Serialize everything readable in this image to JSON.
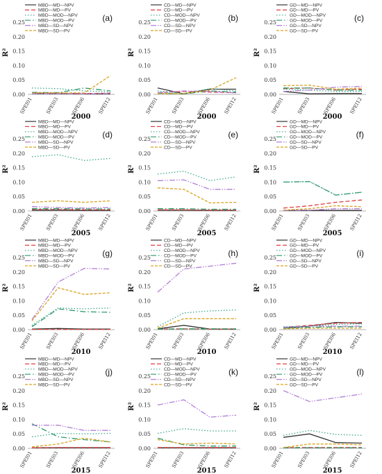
{
  "styles": {
    "MD_NPV": {
      "color": "#333333",
      "dash": ""
    },
    "MD_PV": {
      "color": "#e04040",
      "dash": "6,3"
    },
    "MOD_NPV": {
      "color": "#3aa68c",
      "dash": "1.5,2.5"
    },
    "MOD_PV": {
      "color": "#2c9a6a",
      "dash": "8,3,1.5,3"
    },
    "SD_NPV": {
      "color": "#b27fd6",
      "dash": "8,2,1.5,2,1.5,2"
    },
    "SD_PV": {
      "color": "#d9a21f",
      "dash": "4,2"
    }
  },
  "chart_data": [
    {
      "type": "line",
      "panel": "(a)",
      "year": "2000",
      "ylabel": "R²",
      "categories": [
        "SPEI01",
        "SPEI03",
        "SPEI06",
        "SPEI12"
      ],
      "ylim": [
        0,
        0.25
      ],
      "yticks": [
        "0.00",
        "0.05",
        "0.10",
        "0.15",
        "0.20",
        "0.25"
      ],
      "series": [
        {
          "name": "MBD—MD—NPV",
          "style": "MD_NPV",
          "values": [
            0.003,
            0.003,
            0.002,
            0.002
          ]
        },
        {
          "name": "MBD—MD—PV",
          "style": "MD_PV",
          "values": [
            0.005,
            0.004,
            0.003,
            0.004
          ]
        },
        {
          "name": "MBD—MOD—NPV",
          "style": "MOD_NPV",
          "values": [
            0.022,
            0.02,
            0.012,
            0.008
          ]
        },
        {
          "name": "MBD—MOD—PV",
          "style": "MOD_PV",
          "values": [
            0.007,
            0.006,
            0.022,
            0.012
          ]
        },
        {
          "name": "MBD—SD—NPV",
          "style": "SD_NPV",
          "values": [
            0.002,
            0.002,
            0.002,
            0.003
          ]
        },
        {
          "name": "MBD—SD—PV",
          "style": "SD_PV",
          "values": [
            0.005,
            0.005,
            0.005,
            0.065
          ]
        }
      ]
    },
    {
      "type": "line",
      "panel": "(b)",
      "year": "2000",
      "ylabel": "R²",
      "categories": [
        "SPEI01",
        "SPEI03",
        "SPEI06",
        "SPEI12"
      ],
      "ylim": [
        0,
        0.25
      ],
      "yticks": [
        "0.00",
        "0.05",
        "0.10",
        "0.15",
        "0.20",
        "0.25"
      ],
      "series": [
        {
          "name": "CD—MD—NPV",
          "style": "MD_NPV",
          "values": [
            0.022,
            0.002,
            0.018,
            0.018
          ]
        },
        {
          "name": "CD—MD—PV",
          "style": "MD_PV",
          "values": [
            0.006,
            0.01,
            0.008,
            0.006
          ]
        },
        {
          "name": "CD—MOD—NPV",
          "style": "MOD_NPV",
          "values": [
            0.012,
            0.003,
            0.02,
            0.012
          ]
        },
        {
          "name": "CD—MOD—PV",
          "style": "MOD_PV",
          "values": [
            0.004,
            0.002,
            0.012,
            0.008
          ]
        },
        {
          "name": "CD—SD—NPV",
          "style": "SD_NPV",
          "values": [
            0.006,
            0.012,
            0.01,
            0.005
          ]
        },
        {
          "name": "CD—SD—PV",
          "style": "SD_PV",
          "values": [
            0.003,
            0.003,
            0.015,
            0.058
          ]
        }
      ]
    },
    {
      "type": "line",
      "panel": "(c)",
      "year": "2000",
      "ylabel": "R²",
      "categories": [
        "SPEI01",
        "SPEI03",
        "SPEI06",
        "SPEI12"
      ],
      "ylim": [
        0,
        0.25
      ],
      "yticks": [
        "0.00",
        "0.05",
        "0.10",
        "0.15",
        "0.20",
        "0.25"
      ],
      "series": [
        {
          "name": "GD—MD—NPV",
          "style": "MD_NPV",
          "values": [
            0.01,
            0.002,
            0.003,
            0.003
          ]
        },
        {
          "name": "GD—MD—PV",
          "style": "MD_PV",
          "values": [
            0.02,
            0.022,
            0.015,
            0.018
          ]
        },
        {
          "name": "GD—MOD—NPV",
          "style": "MOD_NPV",
          "values": [
            0.018,
            0.015,
            0.01,
            0.01
          ]
        },
        {
          "name": "GD—MOD—PV",
          "style": "MOD_PV",
          "values": [
            0.022,
            0.022,
            0.015,
            0.015
          ]
        },
        {
          "name": "GD—SD—NPV",
          "style": "SD_NPV",
          "values": [
            0.01,
            0.015,
            0.025,
            0.028
          ]
        },
        {
          "name": "GD—SD—PV",
          "style": "SD_PV",
          "values": [
            0.03,
            0.032,
            0.018,
            0.022
          ]
        }
      ]
    },
    {
      "type": "line",
      "panel": "(d)",
      "year": "2005",
      "ylabel": "R²",
      "categories": [
        "SPEI01",
        "SPEI03",
        "SPEI06",
        "SPEI12"
      ],
      "ylim": [
        0,
        0.25
      ],
      "yticks": [
        "0.00",
        "0.05",
        "0.10",
        "0.15",
        "0.20",
        "0.25"
      ],
      "series": [
        {
          "name": "MBD—MD—NPV",
          "style": "MD_NPV",
          "values": [
            0.003,
            0.003,
            0.002,
            0.002
          ]
        },
        {
          "name": "MBD—MD—PV",
          "style": "MD_PV",
          "values": [
            0.005,
            0.005,
            0.004,
            0.004
          ]
        },
        {
          "name": "MBD—MOD—NPV",
          "style": "MOD_NPV",
          "values": [
            0.188,
            0.195,
            0.175,
            0.182
          ]
        },
        {
          "name": "MBD—MOD—PV",
          "style": "MOD_PV",
          "values": [
            0.008,
            0.008,
            0.007,
            0.007
          ]
        },
        {
          "name": "MBD—SD—NPV",
          "style": "SD_NPV",
          "values": [
            0.015,
            0.012,
            0.01,
            0.012
          ]
        },
        {
          "name": "MBD—SD—PV",
          "style": "SD_PV",
          "values": [
            0.03,
            0.035,
            0.03,
            0.035
          ]
        }
      ]
    },
    {
      "type": "line",
      "panel": "(e)",
      "year": "2005",
      "ylabel": "R²",
      "categories": [
        "SPEI01",
        "SPEI03",
        "SPEI06",
        "SPEI12"
      ],
      "ylim": [
        0,
        0.25
      ],
      "yticks": [
        "0.00",
        "0.05",
        "0.10",
        "0.15",
        "0.20",
        "0.25"
      ],
      "series": [
        {
          "name": "CD—MD—NPV",
          "style": "MD_NPV",
          "values": [
            0.003,
            0.003,
            0.002,
            0.002
          ]
        },
        {
          "name": "CD—MD—PV",
          "style": "MD_PV",
          "values": [
            0.004,
            0.004,
            0.003,
            0.003
          ]
        },
        {
          "name": "CD—MOD—NPV",
          "style": "MOD_NPV",
          "values": [
            0.128,
            0.138,
            0.105,
            0.118
          ]
        },
        {
          "name": "CD—MOD—PV",
          "style": "MOD_PV",
          "values": [
            0.008,
            0.008,
            0.006,
            0.006
          ]
        },
        {
          "name": "CD—SD—NPV",
          "style": "SD_NPV",
          "values": [
            0.105,
            0.108,
            0.075,
            0.075
          ]
        },
        {
          "name": "CD—SD—PV",
          "style": "SD_PV",
          "values": [
            0.08,
            0.075,
            0.028,
            0.03
          ]
        }
      ]
    },
    {
      "type": "line",
      "panel": "(f)",
      "year": "2005",
      "ylabel": "R²",
      "categories": [
        "SPEI01",
        "SPEI03",
        "SPEI06",
        "SPEI12"
      ],
      "ylim": [
        0,
        0.25
      ],
      "yticks": [
        "0.00",
        "0.05",
        "0.10",
        "0.15",
        "0.20",
        "0.25"
      ],
      "series": [
        {
          "name": "GD—MD—NPV",
          "style": "MD_NPV",
          "values": [
            0.002,
            0.002,
            0.002,
            0.002
          ]
        },
        {
          "name": "GD—MD—PV",
          "style": "MD_PV",
          "values": [
            0.01,
            0.018,
            0.03,
            0.038
          ]
        },
        {
          "name": "GD—MOD—NPV",
          "style": "MOD_NPV",
          "values": [
            0.1,
            0.102,
            0.055,
            0.065
          ]
        },
        {
          "name": "GD—MOD—PV",
          "style": "MOD_PV",
          "values": [
            0.1,
            0.102,
            0.055,
            0.065
          ]
        },
        {
          "name": "GD—SD—NPV",
          "style": "SD_NPV",
          "values": [
            0.002,
            0.003,
            0.008,
            0.008
          ]
        },
        {
          "name": "GD—SD—PV",
          "style": "SD_PV",
          "values": [
            0.003,
            0.008,
            0.018,
            0.015
          ]
        }
      ]
    },
    {
      "type": "line",
      "panel": "(g)",
      "year": "2010",
      "ylabel": "R²",
      "categories": [
        "SPEI01",
        "SPEI03",
        "SPEI06",
        "SPEI12"
      ],
      "ylim": [
        0,
        0.25
      ],
      "yticks": [
        "0.00",
        "0.05",
        "0.10",
        "0.15",
        "0.20",
        "0.25"
      ],
      "series": [
        {
          "name": "MBD—MD—NPV",
          "style": "MD_NPV",
          "values": [
            0.002,
            0.004,
            0.002,
            0.002
          ]
        },
        {
          "name": "MBD—MD—PV",
          "style": "MD_PV",
          "values": [
            0.001,
            0.001,
            0.001,
            0.001
          ]
        },
        {
          "name": "MBD—MOD—NPV",
          "style": "MOD_NPV",
          "values": [
            0.015,
            0.075,
            0.072,
            0.075
          ]
        },
        {
          "name": "MBD—MOD—PV",
          "style": "MOD_PV",
          "values": [
            0.01,
            0.072,
            0.062,
            0.06
          ]
        },
        {
          "name": "MBD—SD—NPV",
          "style": "SD_NPV",
          "values": [
            0.035,
            0.165,
            0.212,
            0.21
          ]
        },
        {
          "name": "MBD—SD—PV",
          "style": "SD_PV",
          "values": [
            0.03,
            0.145,
            0.122,
            0.128
          ]
        }
      ]
    },
    {
      "type": "line",
      "panel": "(h)",
      "year": "2010",
      "ylabel": "R²",
      "categories": [
        "SPEI01",
        "SPEI03",
        "SPEI06",
        "SPEI12"
      ],
      "ylim": [
        0,
        0.25
      ],
      "yticks": [
        "0.00",
        "0.05",
        "0.10",
        "0.15",
        "0.20",
        "0.25"
      ],
      "series": [
        {
          "name": "CD—MD—NPV",
          "style": "MD_NPV",
          "values": [
            0.003,
            0.015,
            0.002,
            0.002
          ]
        },
        {
          "name": "CD—MD—PV",
          "style": "MD_PV",
          "values": [
            0.002,
            0.003,
            0.002,
            0.002
          ]
        },
        {
          "name": "CD—MOD—NPV",
          "style": "MOD_NPV",
          "values": [
            0.01,
            0.058,
            0.065,
            0.068
          ]
        },
        {
          "name": "CD—MOD—PV",
          "style": "MOD_PV",
          "values": [
            0.002,
            0.003,
            0.003,
            0.003
          ]
        },
        {
          "name": "CD—SD—NPV",
          "style": "SD_NPV",
          "values": [
            0.13,
            0.21,
            0.22,
            0.23
          ]
        },
        {
          "name": "CD—SD—PV",
          "style": "SD_PV",
          "values": [
            0.005,
            0.038,
            0.038,
            0.038
          ]
        }
      ]
    },
    {
      "type": "line",
      "panel": "(i)",
      "year": "2010",
      "ylabel": "R²",
      "categories": [
        "SPEI01",
        "SPEI03",
        "SPEI06",
        "SPEI12"
      ],
      "ylim": [
        0,
        0.25
      ],
      "yticks": [
        "0.00",
        "0.05",
        "0.10",
        "0.15",
        "0.20",
        "0.25"
      ],
      "series": [
        {
          "name": "GD—MD—NPV",
          "style": "MD_NPV",
          "values": [
            0.005,
            0.012,
            0.025,
            0.022
          ]
        },
        {
          "name": "GD—MD—PV",
          "style": "MD_PV",
          "values": [
            0.008,
            0.015,
            0.022,
            0.025
          ]
        },
        {
          "name": "GD—MOD—NPV",
          "style": "MOD_NPV",
          "values": [
            0.01,
            0.012,
            0.018,
            0.02
          ]
        },
        {
          "name": "GD—MOD—PV",
          "style": "MOD_PV",
          "values": [
            0.005,
            0.008,
            0.01,
            0.01
          ]
        },
        {
          "name": "GD—SD—NPV",
          "style": "SD_NPV",
          "values": [
            0.008,
            0.012,
            0.012,
            0.012
          ]
        },
        {
          "name": "GD—SD—PV",
          "style": "SD_PV",
          "values": [
            0.003,
            0.005,
            0.005,
            0.005
          ]
        }
      ]
    },
    {
      "type": "line",
      "panel": "(j)",
      "year": "2015",
      "ylabel": "R²",
      "categories": [
        "SPEI01",
        "SPEI03",
        "SPEI06",
        "SPEI12"
      ],
      "ylim": [
        0,
        0.25
      ],
      "yticks": [
        "0.00",
        "0.05",
        "0.10",
        "0.15",
        "0.20",
        "0.25"
      ],
      "series": [
        {
          "name": "MBD—MD—NPV",
          "style": "MD_NPV",
          "values": [
            0.002,
            0.002,
            0.002,
            0.002
          ]
        },
        {
          "name": "MBD—MD—PV",
          "style": "MD_PV",
          "values": [
            0.002,
            0.003,
            0.003,
            0.003
          ]
        },
        {
          "name": "MBD—MOD—NPV",
          "style": "MOD_NPV",
          "values": [
            0.04,
            0.052,
            0.05,
            0.052
          ]
        },
        {
          "name": "MBD—MOD—PV",
          "style": "MOD_PV",
          "values": [
            0.085,
            0.04,
            0.03,
            0.022
          ]
        },
        {
          "name": "MBD—SD—NPV",
          "style": "SD_NPV",
          "values": [
            0.08,
            0.08,
            0.062,
            0.062
          ]
        },
        {
          "name": "MBD—SD—PV",
          "style": "SD_PV",
          "values": [
            0.005,
            0.015,
            0.035,
            0.022
          ]
        }
      ]
    },
    {
      "type": "line",
      "panel": "(k)",
      "year": "2015",
      "ylabel": "R²",
      "categories": [
        "SPEI01",
        "SPEI03",
        "SPEI06",
        "SPEI12"
      ],
      "ylim": [
        0,
        0.25
      ],
      "yticks": [
        "0.00",
        "0.05",
        "0.10",
        "0.15",
        "0.20",
        "0.25"
      ],
      "series": [
        {
          "name": "CD—MD—NPV",
          "style": "MD_NPV",
          "values": [
            0.002,
            0.002,
            0.002,
            0.002
          ]
        },
        {
          "name": "CD—MD—PV",
          "style": "MD_PV",
          "values": [
            0.003,
            0.003,
            0.003,
            0.003
          ]
        },
        {
          "name": "CD—MOD—NPV",
          "style": "MOD_NPV",
          "values": [
            0.052,
            0.068,
            0.06,
            0.06
          ]
        },
        {
          "name": "CD—MOD—PV",
          "style": "MOD_PV",
          "values": [
            0.035,
            0.012,
            0.008,
            0.008
          ]
        },
        {
          "name": "CD—SD—NPV",
          "style": "SD_NPV",
          "values": [
            0.15,
            0.168,
            0.108,
            0.115
          ]
        },
        {
          "name": "CD—SD—PV",
          "style": "SD_PV",
          "values": [
            0.03,
            0.015,
            0.018,
            0.015
          ]
        }
      ]
    },
    {
      "type": "line",
      "panel": "(l)",
      "year": "2015",
      "ylabel": "R²",
      "categories": [
        "SPEI01",
        "SPEI03",
        "SPEI06",
        "SPEI12"
      ],
      "ylim": [
        0,
        0.25
      ],
      "yticks": [
        "0.00",
        "0.05",
        "0.10",
        "0.15",
        "0.20",
        "0.25"
      ],
      "series": [
        {
          "name": "GD—MD—NPV",
          "style": "MD_NPV",
          "values": [
            0.038,
            0.05,
            0.02,
            0.018
          ]
        },
        {
          "name": "GD—MD—PV",
          "style": "MD_PV",
          "values": [
            0.003,
            0.003,
            0.003,
            0.003
          ]
        },
        {
          "name": "GD—MOD—NPV",
          "style": "MOD_NPV",
          "values": [
            0.045,
            0.062,
            0.048,
            0.045
          ]
        },
        {
          "name": "GD—MOD—PV",
          "style": "MOD_PV",
          "values": [
            0.002,
            0.002,
            0.002,
            0.002
          ]
        },
        {
          "name": "GD—SD—NPV",
          "style": "SD_NPV",
          "values": [
            0.2,
            0.162,
            0.175,
            0.188
          ]
        },
        {
          "name": "GD—SD—PV",
          "style": "SD_PV",
          "values": [
            0.003,
            0.015,
            0.015,
            0.012
          ]
        }
      ]
    }
  ]
}
